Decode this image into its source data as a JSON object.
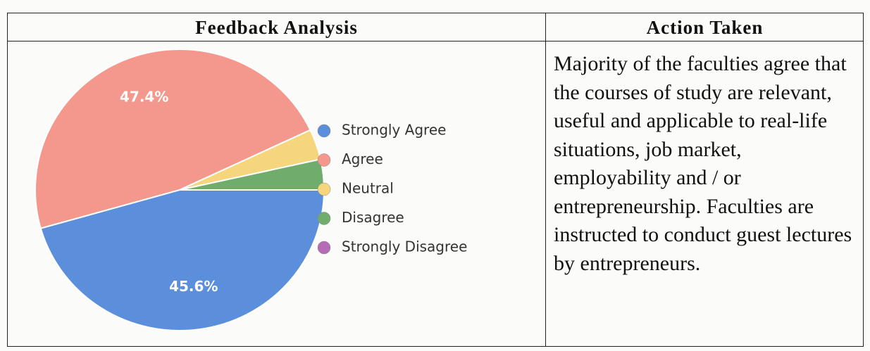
{
  "table": {
    "headers": [
      "Feedback Analysis",
      "Action Taken"
    ],
    "action": "Majority of the faculties agree that the courses of study are relevant, useful and applicable to real-life situations, job market, employability and / or entrepreneurship. Faculties are instructed to conduct guest lectures by entrepreneurs."
  },
  "chart_data": {
    "type": "pie",
    "categories": [
      "Strongly Agree",
      "Agree",
      "Neutral",
      "Disagree",
      "Strongly Disagree"
    ],
    "values": [
      45.6,
      47.4,
      3.5,
      3.5,
      0
    ],
    "value_labels": [
      "45.6%",
      "47.4%",
      null,
      null,
      null
    ],
    "colors": [
      "#5b8fdb",
      "#f4988e",
      "#f6d67c",
      "#70ad6c",
      "#b56bb5"
    ],
    "legend": "right"
  }
}
